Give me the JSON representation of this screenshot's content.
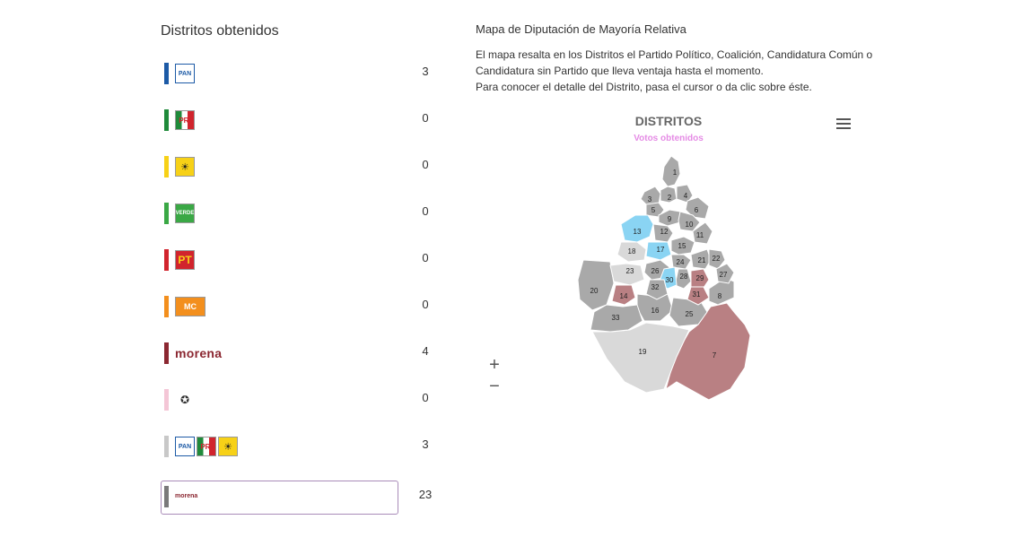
{
  "left": {
    "title": "Distritos obtenidos",
    "rows": [
      {
        "party": "PAN",
        "bar_color": "#1c5aa6",
        "logos": [
          "PAN"
        ],
        "count": "3"
      },
      {
        "party": "PRI",
        "bar_color": "#1f8a3a",
        "logos": [
          "PRI"
        ],
        "count": "0"
      },
      {
        "party": "PRD",
        "bar_color": "#f7d117",
        "logos": [
          "PRD"
        ],
        "count": "0"
      },
      {
        "party": "VERDE",
        "bar_color": "#3aa845",
        "logos": [
          "VERDE"
        ],
        "count": "0"
      },
      {
        "party": "PT",
        "bar_color": "#d1242d",
        "logos": [
          "PT"
        ],
        "count": "0"
      },
      {
        "party": "MC",
        "bar_color": "#f38f1d",
        "logos": [
          "MC"
        ],
        "count": "0"
      },
      {
        "party": "morena",
        "bar_color": "#8b2731",
        "logos": [
          "morena"
        ],
        "count": "4"
      },
      {
        "party": "PES",
        "bar_color": "#f4c6d6",
        "logos": [
          "PES"
        ],
        "count": "0"
      },
      {
        "party": "PAN-PRI-PRD",
        "bar_color": "#c8c8c8",
        "logos": [
          "PAN",
          "PRI",
          "PRD"
        ],
        "count": "3"
      },
      {
        "party": "morena-coalicion",
        "bar_color": "#7a7a7a",
        "logos": [
          "morena"
        ],
        "count": "23"
      }
    ]
  },
  "logo_text": {
    "PAN": "PAN",
    "PRI": "PRI",
    "PRD": "☀",
    "VERDE": "VERDE",
    "PT": "PT",
    "MC": "MC",
    "PES": "✪",
    "morena": "morena"
  },
  "right": {
    "title": "Mapa de Diputación de Mayoría Relativa",
    "description_lines": [
      "El mapa resalta en los Distritos el Partido Político, Coalición, Candidatura Común o",
      "Candidatura sin Partido que lleva ventaja hasta el momento.",
      "Para conocer el detalle del Distrito, pasa el cursor o da clic sobre éste."
    ]
  },
  "chart": {
    "title": "DISTRITOS",
    "subtitle": "Votos obtenidos",
    "zoom_in": "+",
    "zoom_out": "−",
    "colors": {
      "gray": "#a9a9a9",
      "light": "#d9d9d9",
      "blue": "#8ad4f3",
      "morena": "#b98083"
    }
  },
  "chart_data": {
    "type": "map",
    "title": "DISTRITOS",
    "subtitle": "Votos obtenidos",
    "districts": [
      {
        "id": "1",
        "fill": "gray"
      },
      {
        "id": "2",
        "fill": "gray"
      },
      {
        "id": "3",
        "fill": "gray"
      },
      {
        "id": "4",
        "fill": "gray"
      },
      {
        "id": "5",
        "fill": "gray"
      },
      {
        "id": "6",
        "fill": "gray"
      },
      {
        "id": "7",
        "fill": "morena"
      },
      {
        "id": "8",
        "fill": "gray"
      },
      {
        "id": "9",
        "fill": "gray"
      },
      {
        "id": "10",
        "fill": "gray"
      },
      {
        "id": "11",
        "fill": "gray"
      },
      {
        "id": "12",
        "fill": "gray"
      },
      {
        "id": "13",
        "fill": "blue"
      },
      {
        "id": "14",
        "fill": "morena"
      },
      {
        "id": "15",
        "fill": "gray"
      },
      {
        "id": "16",
        "fill": "gray"
      },
      {
        "id": "17",
        "fill": "blue"
      },
      {
        "id": "18",
        "fill": "light"
      },
      {
        "id": "19",
        "fill": "light"
      },
      {
        "id": "20",
        "fill": "gray"
      },
      {
        "id": "21",
        "fill": "gray"
      },
      {
        "id": "22",
        "fill": "gray"
      },
      {
        "id": "23",
        "fill": "light"
      },
      {
        "id": "24",
        "fill": "gray"
      },
      {
        "id": "25",
        "fill": "gray"
      },
      {
        "id": "26",
        "fill": "gray"
      },
      {
        "id": "27",
        "fill": "gray"
      },
      {
        "id": "28",
        "fill": "gray"
      },
      {
        "id": "29",
        "fill": "morena"
      },
      {
        "id": "30",
        "fill": "blue"
      },
      {
        "id": "31",
        "fill": "morena"
      },
      {
        "id": "32",
        "fill": "gray"
      },
      {
        "id": "33",
        "fill": "gray"
      }
    ]
  }
}
